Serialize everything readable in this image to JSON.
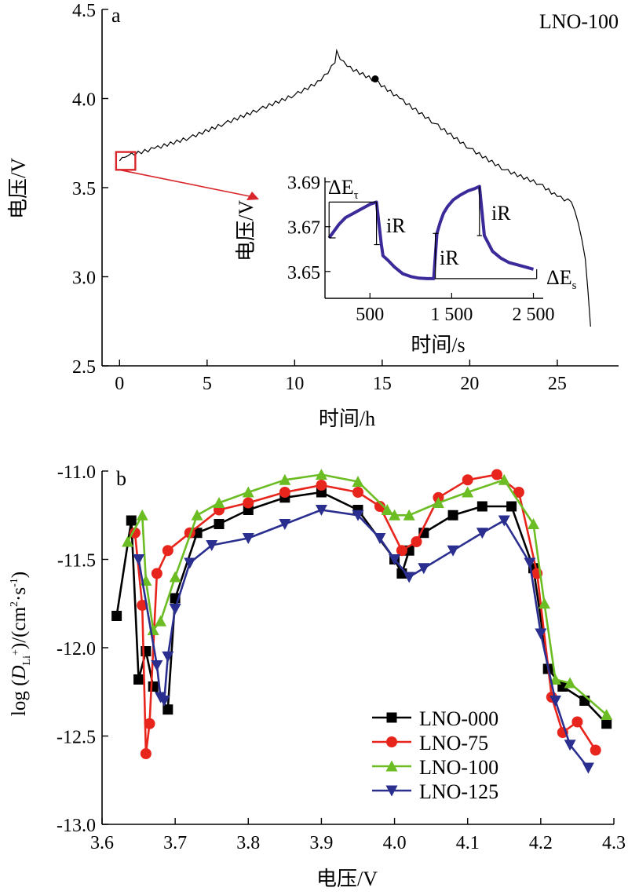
{
  "chart_data": [
    {
      "panel": "a",
      "type": "line",
      "label_text": "LNO-100",
      "xlabel": "时间/h",
      "ylabel": "电压/V",
      "xlim": [
        -1,
        28.5
      ],
      "ylim": [
        2.5,
        4.5
      ],
      "x_ticks": [
        0,
        5,
        10,
        15,
        20,
        25
      ],
      "y_ticks": [
        "2.5",
        "3.0",
        "3.5",
        "4.0",
        "4.5"
      ],
      "series": [
        {
          "x": [
            0,
            0.3,
            0.5,
            2,
            4,
            6,
            8,
            10,
            11.5,
            12.3,
            12.4,
            12.6,
            13,
            14.6,
            16,
            18,
            20,
            22,
            24,
            25,
            25.8,
            26.2,
            26.6,
            26.9
          ],
          "y": [
            3.65,
            3.67,
            3.68,
            3.72,
            3.78,
            3.86,
            3.94,
            4.02,
            4.1,
            4.2,
            4.27,
            4.22,
            4.18,
            4.1,
            4.0,
            3.86,
            3.72,
            3.6,
            3.52,
            3.45,
            3.42,
            3.3,
            3.1,
            2.72
          ]
        }
      ],
      "highlight_box": {
        "x": [
          -0.2,
          0.9
        ],
        "y": [
          3.6,
          3.7
        ]
      },
      "inset": {
        "type": "line",
        "xlabel": "时间/s",
        "ylabel": "电压/V",
        "xlim": [
          -50,
          2620
        ],
        "ylim": [
          3.638,
          3.692
        ],
        "x_ticks": [
          "500",
          "1 500",
          "2 500"
        ],
        "x_tick_values": [
          500,
          1500,
          2500
        ],
        "y_ticks": [
          "3.65",
          "3.67",
          "3.69"
        ],
        "y_tick_values": [
          3.65,
          3.67,
          3.69
        ],
        "x": [
          0,
          40,
          120,
          200,
          300,
          400,
          500,
          580,
          640,
          660,
          720,
          800,
          900,
          1000,
          1100,
          1200,
          1280,
          1320,
          1360,
          1400,
          1450,
          1520,
          1600,
          1700,
          1780,
          1840,
          1900,
          2000,
          2100,
          2200,
          2300,
          2400,
          2500
        ],
        "y": [
          3.665,
          3.667,
          3.671,
          3.674,
          3.676,
          3.678,
          3.68,
          3.681,
          3.662,
          3.657,
          3.655,
          3.652,
          3.649,
          3.6477,
          3.647,
          3.6468,
          3.6468,
          3.667,
          3.672,
          3.676,
          3.679,
          3.682,
          3.684,
          3.686,
          3.687,
          3.688,
          3.666,
          3.659,
          3.656,
          3.654,
          3.653,
          3.652,
          3.651
        ],
        "annotations": [
          "ΔE",
          "τ",
          "iR",
          "iR",
          "iR",
          "ΔE",
          "s"
        ]
      }
    },
    {
      "panel": "b",
      "type": "line",
      "xlabel": "电压/V",
      "ylabel": {
        "pre": "log (",
        "var": "D",
        "sub1": "Li",
        "sup1": "+",
        "post": ")/(cm",
        "sup2": "2",
        "mid": "·s",
        "sup3": "-1",
        "end": ")"
      },
      "xlim": [
        3.6,
        4.3
      ],
      "ylim": [
        -13.0,
        -11.0
      ],
      "x_ticks": [
        "3.6",
        "3.7",
        "3.8",
        "3.9",
        "4.0",
        "4.1",
        "4.2",
        "4.3"
      ],
      "y_ticks": [
        "-11.0",
        "-11.5",
        "-12.0",
        "-12.5",
        "-13.0"
      ],
      "legend_position": "bottom-right",
      "series": [
        {
          "name": "LNO-000",
          "color": "#000000",
          "marker": "square",
          "x": [
            3.62,
            3.64,
            3.65,
            3.66,
            3.67,
            3.69,
            3.7,
            3.73,
            3.76,
            3.8,
            3.85,
            3.9,
            3.95,
            4.0,
            4.01,
            4.02,
            4.04,
            4.08,
            4.12,
            4.16,
            4.19,
            4.21,
            4.23,
            4.26,
            4.29
          ],
          "y": [
            -11.82,
            -11.28,
            -12.18,
            -12.02,
            -12.22,
            -12.35,
            -11.72,
            -11.35,
            -11.3,
            -11.22,
            -11.15,
            -11.12,
            -11.22,
            -11.5,
            -11.58,
            -11.45,
            -11.35,
            -11.25,
            -11.2,
            -11.2,
            -11.55,
            -12.12,
            -12.22,
            -12.3,
            -12.43
          ]
        },
        {
          "name": "LNO-75",
          "color": "#e8251c",
          "marker": "circle",
          "x": [
            3.645,
            3.655,
            3.66,
            3.665,
            3.675,
            3.69,
            3.72,
            3.76,
            3.8,
            3.85,
            3.9,
            3.95,
            3.98,
            4.01,
            4.03,
            4.06,
            4.1,
            4.14,
            4.17,
            4.195,
            4.215,
            4.23,
            4.25,
            4.275
          ],
          "y": [
            -11.35,
            -11.76,
            -12.6,
            -12.43,
            -11.58,
            -11.45,
            -11.35,
            -11.22,
            -11.18,
            -11.12,
            -11.08,
            -11.12,
            -11.2,
            -11.45,
            -11.4,
            -11.15,
            -11.05,
            -11.02,
            -11.12,
            -11.58,
            -12.28,
            -12.48,
            -12.42,
            -12.58
          ]
        },
        {
          "name": "LNO-100",
          "color": "#6cbd24",
          "marker": "triangle-up",
          "x": [
            3.635,
            3.655,
            3.66,
            3.67,
            3.68,
            3.7,
            3.73,
            3.76,
            3.8,
            3.85,
            3.9,
            3.95,
            3.99,
            4.0,
            4.02,
            4.06,
            4.1,
            4.15,
            4.19,
            4.205,
            4.22,
            4.24,
            4.29
          ],
          "y": [
            -11.4,
            -11.25,
            -11.62,
            -11.9,
            -11.85,
            -11.6,
            -11.25,
            -11.18,
            -11.12,
            -11.05,
            -11.02,
            -11.06,
            -11.22,
            -11.25,
            -11.25,
            -11.18,
            -11.12,
            -11.05,
            -11.3,
            -11.75,
            -12.18,
            -12.2,
            -12.38
          ]
        },
        {
          "name": "LNO-125",
          "color": "#2a2f8f",
          "marker": "triangle-down",
          "x": [
            3.65,
            3.675,
            3.68,
            3.685,
            3.69,
            3.7,
            3.72,
            3.75,
            3.8,
            3.85,
            3.9,
            3.95,
            3.98,
            4.0,
            4.02,
            4.04,
            4.08,
            4.12,
            4.15,
            4.185,
            4.2,
            4.22,
            4.24,
            4.265
          ],
          "y": [
            -11.5,
            -12.1,
            -12.28,
            -12.3,
            -12.05,
            -11.78,
            -11.52,
            -11.42,
            -11.38,
            -11.3,
            -11.22,
            -11.25,
            -11.38,
            -11.5,
            -11.6,
            -11.55,
            -11.45,
            -11.35,
            -11.28,
            -11.52,
            -11.92,
            -12.3,
            -12.55,
            -12.68
          ]
        }
      ]
    }
  ]
}
